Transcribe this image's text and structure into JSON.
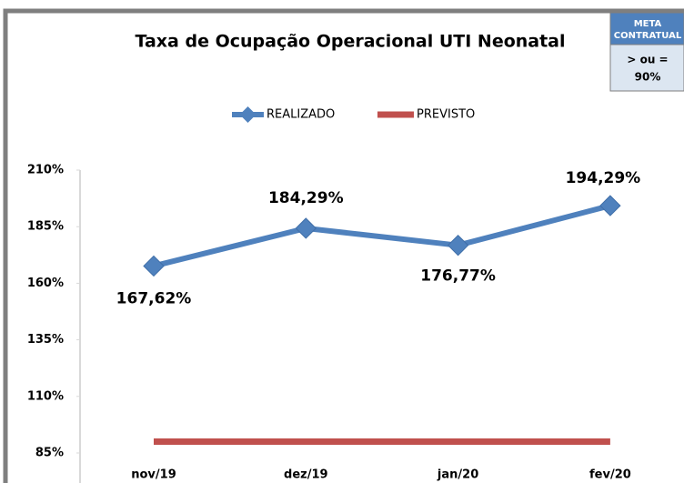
{
  "chart_data": {
    "type": "line",
    "title": "Taxa de Ocupação Operacional UTI Neonatal",
    "categories": [
      "nov/19",
      "dez/19",
      "jan/20",
      "fev/20"
    ],
    "series": [
      {
        "name": "REALIZADO",
        "color": "#4f81bd",
        "values": [
          167.62,
          184.29,
          176.77,
          194.29
        ],
        "value_labels": [
          "167,62%",
          "184,29%",
          "176,77%",
          "194,29%"
        ]
      },
      {
        "name": "PREVISTO",
        "color": "#c0504d",
        "values": [
          90,
          90,
          90,
          90
        ]
      }
    ],
    "ylim": [
      85,
      210
    ],
    "yticks": [
      {
        "value": 85,
        "label": "85%"
      },
      {
        "value": 110,
        "label": "110%"
      },
      {
        "value": 135,
        "label": "135%"
      },
      {
        "value": 160,
        "label": "160%"
      },
      {
        "value": 185,
        "label": "185%"
      },
      {
        "value": 210,
        "label": "210%"
      }
    ],
    "legend": "top",
    "annotation": {
      "header": [
        "META",
        "CONTRATUAL"
      ],
      "body": [
        "> ou =",
        "90%"
      ]
    }
  }
}
